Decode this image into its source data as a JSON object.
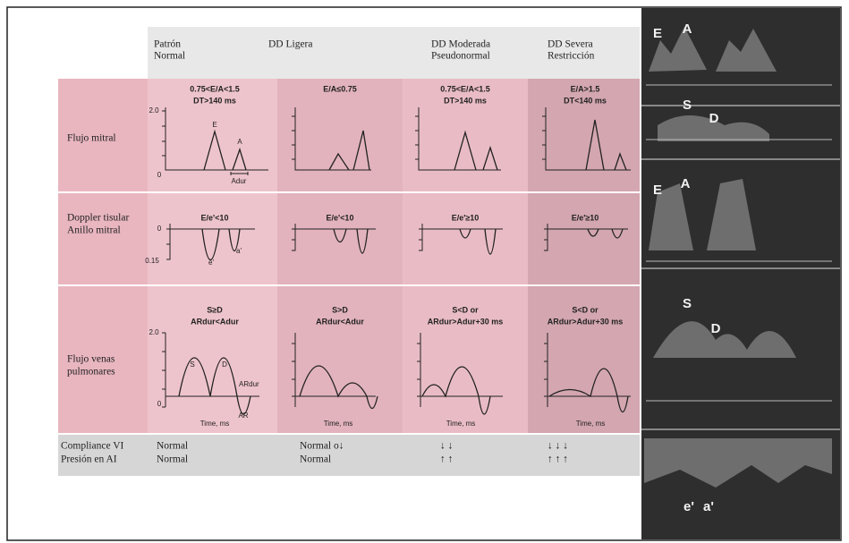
{
  "header": {
    "columns": [
      [
        "Patrón",
        "Normal"
      ],
      [
        "DD Ligera"
      ],
      [
        "DD Moderada",
        "Pseudonormal"
      ],
      [
        "DD Severa",
        "Restricción"
      ]
    ]
  },
  "mitral_flow": {
    "label": "Flujo mitral",
    "criteria": [
      [
        "0.75<E/A<1.5",
        "DT>140 ms"
      ],
      [
        "E/A≤0.75"
      ],
      [
        "0.75<E/A<1.5",
        "DT>140 ms"
      ],
      [
        "E/A>1.5",
        "DT<140 ms"
      ]
    ],
    "axis": {
      "max": "2.0",
      "min": "0"
    },
    "peaks": [
      "E",
      "A"
    ],
    "duration": "Adur"
  },
  "tissue_doppler": {
    "label": [
      "Doppler tisular",
      "Anillo mitral"
    ],
    "criteria": [
      "E/e'<10",
      "E/e'<10",
      "E/e'≥10",
      "E/e'≥10"
    ],
    "axis": {
      "zero": "0",
      "min": "0.15"
    },
    "waves": [
      "e'",
      "a'"
    ]
  },
  "pulmonary_flow": {
    "label": [
      "Flujo venas",
      "pulmonares"
    ],
    "criteria": [
      [
        "S≥D",
        "ARdur<Adur"
      ],
      [
        "S>D",
        "ARdur<Adur"
      ],
      [
        "S<D or",
        "ARdur>Adur+30 ms"
      ],
      [
        "S<D or",
        "ARdur>Adur+30 ms"
      ]
    ],
    "axis": {
      "max": "2.0",
      "min": "0"
    },
    "waves": [
      "S",
      "D",
      "ARdur",
      "AR"
    ],
    "x_label": "Time, ms"
  },
  "footer": {
    "rows": [
      {
        "label": "Compliance VI",
        "values": [
          "Normal",
          "Normal o↓",
          "↓ ↓",
          "↓ ↓ ↓"
        ]
      },
      {
        "label": "Presión en AI",
        "values": [
          "Normal",
          "Normal",
          "↑ ↑",
          "↑ ↑ ↑"
        ]
      }
    ]
  },
  "echo_panels": [
    [
      "E",
      "A"
    ],
    [
      "S",
      "D"
    ],
    [
      "E",
      "A"
    ],
    [
      "S",
      "D"
    ],
    [
      "e'",
      "a'"
    ]
  ]
}
